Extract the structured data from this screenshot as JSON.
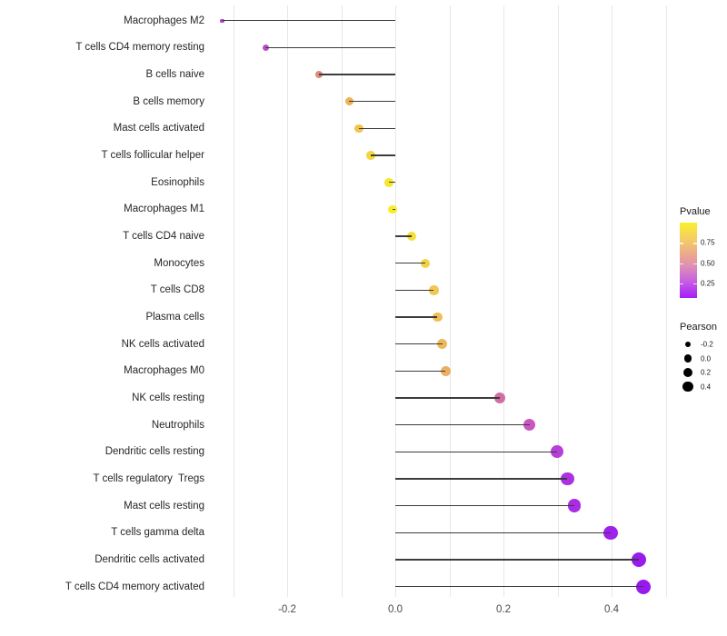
{
  "chart_data": {
    "type": "lollipop",
    "title": "",
    "xlabel": "",
    "ylabel": "",
    "grid": "on",
    "legend_position": "right",
    "x_axis": {
      "xlim": [
        -0.345,
        0.508
      ],
      "gridlines": [
        -0.3,
        -0.2,
        -0.1,
        0.0,
        0.1,
        0.2,
        0.3,
        0.4,
        0.5
      ],
      "ticks": [
        {
          "v": -0.2,
          "label": "-0.2"
        },
        {
          "v": 0.0,
          "label": "0.0"
        },
        {
          "v": 0.2,
          "label": "0.2"
        },
        {
          "v": 0.4,
          "label": "0.4"
        }
      ]
    },
    "stem_color": "#3c3c3c",
    "rows": [
      {
        "label": "Macrophages M2",
        "pearson": -0.32,
        "color": "#A93BD2",
        "r": 2.2
      },
      {
        "label": "T cells CD4 memory resting",
        "pearson": -0.24,
        "color": "#BC4FC6",
        "r": 3.7
      },
      {
        "label": "B cells naive",
        "pearson": -0.141,
        "color": "#DE8B7B",
        "r": 4.3
      },
      {
        "label": "B cells memory",
        "pearson": -0.085,
        "color": "#EDB255",
        "r": 4.6
      },
      {
        "label": "Mast cells activated",
        "pearson": -0.067,
        "color": "#F1C44C",
        "r": 4.7
      },
      {
        "label": "T cells follicular helper",
        "pearson": -0.045,
        "color": "#F4D63E",
        "r": 4.8
      },
      {
        "label": "Eosinophils",
        "pearson": -0.012,
        "color": "#F6E72E",
        "r": 4.9
      },
      {
        "label": "Macrophages M1",
        "pearson": -0.005,
        "color": "#F8EE28",
        "r": 4.9
      },
      {
        "label": "T cells CD4 naive",
        "pearson": 0.03,
        "color": "#F5E038",
        "r": 5.0
      },
      {
        "label": "Monocytes",
        "pearson": 0.055,
        "color": "#F3D343",
        "r": 5.2
      },
      {
        "label": "T cells CD8",
        "pearson": 0.071,
        "color": "#F0C751",
        "r": 5.3
      },
      {
        "label": "Plasma cells",
        "pearson": 0.078,
        "color": "#EFBF57",
        "r": 5.4
      },
      {
        "label": "NK cells activated",
        "pearson": 0.087,
        "color": "#EDB85C",
        "r": 5.5
      },
      {
        "label": "Macrophages M0",
        "pearson": 0.093,
        "color": "#ECAE62",
        "r": 5.5
      },
      {
        "label": "NK cells resting",
        "pearson": 0.193,
        "color": "#D06DA5",
        "r": 6.2
      },
      {
        "label": "Neutrophils",
        "pearson": 0.248,
        "color": "#C957C1",
        "r": 6.6
      },
      {
        "label": "Dendritic cells resting",
        "pearson": 0.299,
        "color": "#B53FD8",
        "r": 7.1
      },
      {
        "label": "T cells regulatory  Tregs",
        "pearson": 0.318,
        "color": "#AE31E1",
        "r": 7.3
      },
      {
        "label": "Mast cells resting",
        "pearson": 0.331,
        "color": "#AA2BE4",
        "r": 7.3
      },
      {
        "label": "T cells gamma delta",
        "pearson": 0.398,
        "color": "#9E20EC",
        "r": 7.7
      },
      {
        "label": "Dendritic cells activated",
        "pearson": 0.45,
        "color": "#9A1BEE",
        "r": 8.0
      },
      {
        "label": "T cells CD4 memory activated",
        "pearson": 0.459,
        "color": "#9719F0",
        "r": 8.1
      }
    ],
    "legend": {
      "color": {
        "title": "Pvalue",
        "range": [
          0.07,
          1.0
        ],
        "ticks": [
          {
            "value": 0.75,
            "label": "0.75"
          },
          {
            "value": 0.5,
            "label": "0.50"
          },
          {
            "value": 0.25,
            "label": "0.25"
          }
        ],
        "gradient_stops": [
          "#F9F02B 0%",
          "#F5CD66 22%",
          "#EBA88C 42%",
          "#DE8FB4 58%",
          "#C964DF 76%",
          "#A31FF8 100%"
        ]
      },
      "size": {
        "title": "Pearson",
        "entries": [
          {
            "label": "-0.2",
            "r": 3.3
          },
          {
            "label": "0.0",
            "r": 4.3
          },
          {
            "label": "0.2",
            "r": 5.1
          },
          {
            "label": "0.4",
            "r": 5.8
          }
        ]
      }
    }
  }
}
